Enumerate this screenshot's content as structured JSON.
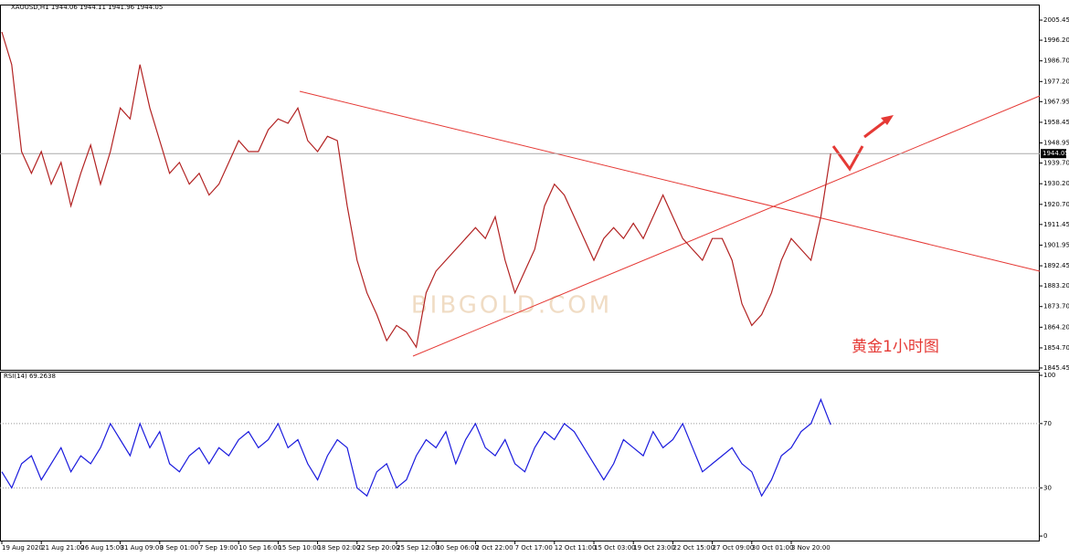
{
  "chart_data": [
    {
      "type": "line",
      "title": "XAUUSD,H1  1944.06 1944.11 1941.96 1944.05",
      "categories": [
        "19 Aug 2020",
        null,
        null,
        null,
        "21 Aug 21:00",
        null,
        null,
        null,
        "26 Aug 15:00",
        null,
        null,
        null,
        "31 Aug 09:00",
        null,
        null,
        null,
        "3 Sep 01:00",
        null,
        null,
        null,
        "7 Sep 19:00",
        null,
        null,
        null,
        "10 Sep 16:00",
        null,
        null,
        null,
        "15 Sep 10:00",
        null,
        null,
        null,
        "18 Sep 02:00",
        null,
        null,
        null,
        "22 Sep 20:00",
        null,
        null,
        null,
        "25 Sep 12:00",
        null,
        null,
        null,
        "30 Sep 06:00",
        null,
        null,
        null,
        "2 Oct 22:00",
        null,
        null,
        null,
        "7 Oct 17:00",
        null,
        null,
        null,
        "12 Oct 11:00",
        null,
        null,
        null,
        "15 Oct 03:00",
        null,
        null,
        null,
        "19 Oct 23:00",
        null,
        null,
        null,
        "22 Oct 15:00",
        null,
        null,
        null,
        "27 Oct 09:00",
        null,
        null,
        null,
        "30 Oct 01:00",
        null,
        null,
        null,
        "3 Nov 20:00",
        null,
        null,
        null,
        null
      ],
      "values": [
        2000,
        1985,
        1945,
        1935,
        1945,
        1930,
        1940,
        1920,
        1935,
        1948,
        1930,
        1945,
        1965,
        1960,
        1985,
        1965,
        1950,
        1935,
        1940,
        1930,
        1935,
        1925,
        1930,
        1940,
        1950,
        1945,
        1945,
        1955,
        1960,
        1958,
        1965,
        1950,
        1945,
        1952,
        1950,
        1920,
        1895,
        1880,
        1870,
        1858,
        1865,
        1862,
        1855,
        1880,
        1890,
        1895,
        1900,
        1905,
        1910,
        1905,
        1915,
        1895,
        1880,
        1890,
        1900,
        1920,
        1930,
        1925,
        1915,
        1905,
        1895,
        1905,
        1910,
        1905,
        1912,
        1905,
        1915,
        1925,
        1915,
        1905,
        1900,
        1895,
        1905,
        1905,
        1895,
        1875,
        1865,
        1870,
        1880,
        1895,
        1905,
        1900,
        1895,
        1915,
        1944.05
      ],
      "color": "#b22222",
      "ylim": [
        1844.6,
        2012.6
      ],
      "yticks": [
        2005.45,
        {
          "value": 1996.2,
          "label": "1996.20"
        },
        {
          "value": 1986.7,
          "label": "1986.70"
        },
        {
          "value": 1977.2,
          "label": "1977.20"
        },
        1967.95,
        1958.45,
        1948.95,
        {
          "value": 1939.7,
          "label": "1939.70"
        },
        {
          "value": 1930.2,
          "label": "1930.20"
        },
        {
          "value": 1920.7,
          "label": "1920.70"
        },
        1911.45,
        1901.95,
        1892.45,
        {
          "value": 1883.2,
          "label": "1883.20"
        },
        {
          "value": 1873.7,
          "label": "1873.70"
        },
        {
          "value": 1864.2,
          "label": "1864.20"
        },
        {
          "value": 1854.7,
          "label": "1854.70"
        },
        1845.45
      ],
      "last_value": 1944.05,
      "annotation": "黄金1小时图",
      "watermark": "BIBGOLD.COM"
    },
    {
      "type": "line",
      "title": "RSI(14) 69.2638",
      "values": [
        40,
        30,
        45,
        50,
        35,
        45,
        55,
        40,
        50,
        45,
        55,
        70,
        60,
        50,
        70,
        55,
        65,
        45,
        40,
        50,
        55,
        45,
        55,
        50,
        60,
        65,
        55,
        60,
        70,
        55,
        60,
        45,
        35,
        50,
        60,
        55,
        30,
        25,
        40,
        45,
        30,
        35,
        50,
        60,
        55,
        65,
        45,
        60,
        70,
        55,
        50,
        60,
        45,
        40,
        55,
        65,
        60,
        70,
        65,
        55,
        45,
        35,
        45,
        60,
        55,
        50,
        65,
        55,
        60,
        70,
        55,
        40,
        45,
        50,
        55,
        45,
        40,
        25,
        35,
        50,
        55,
        65,
        70,
        85,
        69.2638
      ],
      "color": "#1a1add",
      "ylim": [
        -2.8,
        102.3
      ],
      "yticks": [
        0,
        30,
        70,
        100
      ],
      "levels": [
        30,
        70
      ]
    }
  ]
}
